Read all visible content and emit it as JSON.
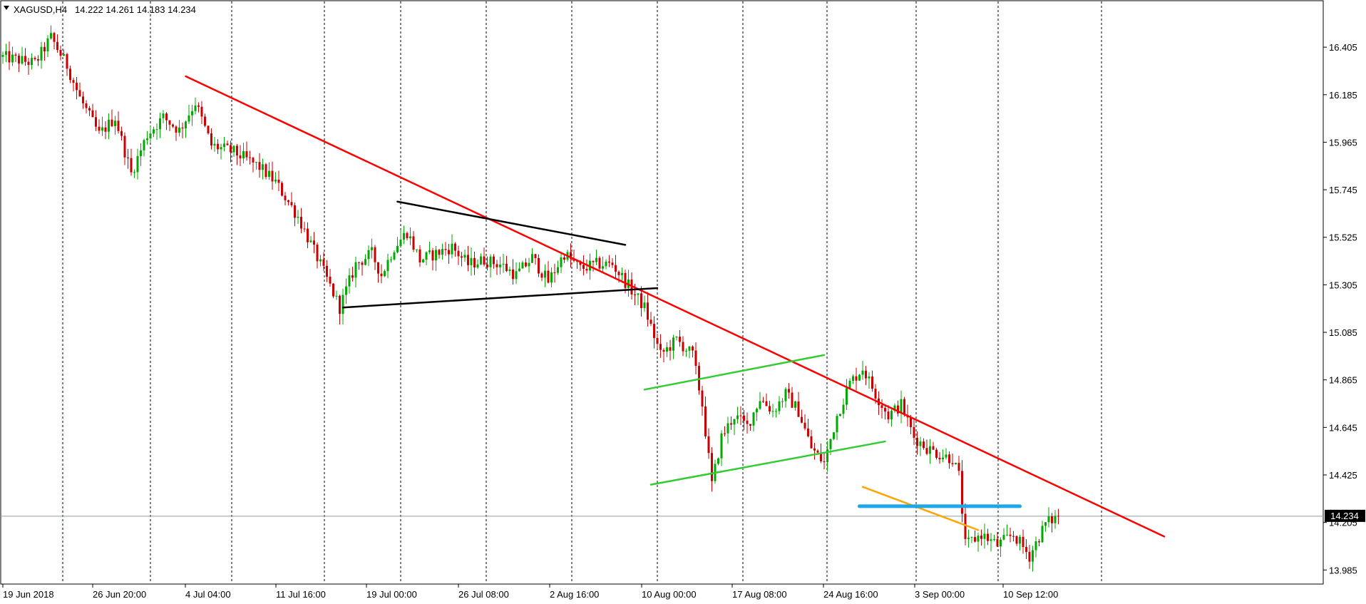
{
  "chart_data": {
    "type": "candlestick",
    "symbol_label": "XAGUSD,H4",
    "ohlc_label": "14.222 14.261 14.183 14.234",
    "last_price": "14.234",
    "y_ticks": [
      "16.405",
      "16.185",
      "15.965",
      "15.745",
      "15.525",
      "15.305",
      "15.085",
      "14.865",
      "14.645",
      "14.425",
      "14.205",
      "13.985"
    ],
    "ylim": [
      13.92,
      16.62
    ],
    "x_tick_labels": [
      "19 Jun 2018",
      "26 Jun 20:00",
      "4 Jul 04:00",
      "11 Jul 16:00",
      "19 Jul 00:00",
      "26 Jul 08:00",
      "2 Aug 16:00",
      "10 Aug 00:00",
      "17 Aug 08:00",
      "24 Aug 16:00",
      "3 Sep 00:00",
      "10 Sep 12:00"
    ],
    "bars_count": 330,
    "path_anchors": [
      [
        0,
        16.36
      ],
      [
        10,
        16.33
      ],
      [
        15,
        16.45
      ],
      [
        20,
        16.32
      ],
      [
        24,
        16.17
      ],
      [
        30,
        16.0
      ],
      [
        35,
        16.08
      ],
      [
        40,
        15.82
      ],
      [
        45,
        16.0
      ],
      [
        50,
        16.08
      ],
      [
        55,
        16.02
      ],
      [
        60,
        16.15
      ],
      [
        65,
        15.95
      ],
      [
        72,
        15.92
      ],
      [
        80,
        15.85
      ],
      [
        85,
        15.78
      ],
      [
        92,
        15.62
      ],
      [
        98,
        15.43
      ],
      [
        105,
        15.2
      ],
      [
        110,
        15.4
      ],
      [
        115,
        15.45
      ],
      [
        118,
        15.35
      ],
      [
        122,
        15.48
      ],
      [
        126,
        15.55
      ],
      [
        130,
        15.42
      ],
      [
        135,
        15.45
      ],
      [
        140,
        15.48
      ],
      [
        145,
        15.4
      ],
      [
        150,
        15.42
      ],
      [
        155,
        15.4
      ],
      [
        160,
        15.35
      ],
      [
        165,
        15.43
      ],
      [
        170,
        15.32
      ],
      [
        175,
        15.45
      ],
      [
        180,
        15.38
      ],
      [
        185,
        15.4
      ],
      [
        190,
        15.4
      ],
      [
        195,
        15.3
      ],
      [
        200,
        15.2
      ],
      [
        205,
        14.98
      ],
      [
        210,
        15.05
      ],
      [
        215,
        14.98
      ],
      [
        218,
        14.75
      ],
      [
        221,
        14.38
      ],
      [
        224,
        14.6
      ],
      [
        228,
        14.7
      ],
      [
        232,
        14.65
      ],
      [
        236,
        14.78
      ],
      [
        240,
        14.72
      ],
      [
        244,
        14.8
      ],
      [
        248,
        14.72
      ],
      [
        252,
        14.55
      ],
      [
        256,
        14.48
      ],
      [
        260,
        14.7
      ],
      [
        264,
        14.85
      ],
      [
        268,
        14.92
      ],
      [
        272,
        14.8
      ],
      [
        276,
        14.7
      ],
      [
        280,
        14.75
      ],
      [
        284,
        14.6
      ],
      [
        288,
        14.55
      ],
      [
        292,
        14.52
      ],
      [
        296,
        14.5
      ],
      [
        298,
        14.42
      ],
      [
        300,
        14.1
      ],
      [
        305,
        14.15
      ],
      [
        310,
        14.1
      ],
      [
        315,
        14.15
      ],
      [
        320,
        14.05
      ],
      [
        325,
        14.2
      ],
      [
        329,
        14.234
      ]
    ],
    "trendlines": [
      {
        "name": "red-trendline",
        "color": "#ff0000",
        "from": [
          57,
          16.27
        ],
        "to": [
          362,
          14.14
        ]
      },
      {
        "name": "black-upper-line",
        "color": "#000000",
        "from": [
          123,
          15.69
        ],
        "to": [
          194,
          15.49
        ]
      },
      {
        "name": "black-lower-line",
        "color": "#000000",
        "from": [
          106,
          15.2
        ],
        "to": [
          204,
          15.29
        ]
      },
      {
        "name": "green-upper-line",
        "color": "#33cc33",
        "from": [
          200,
          14.82
        ],
        "to": [
          256,
          14.98
        ]
      },
      {
        "name": "green-lower-line",
        "color": "#33cc33",
        "from": [
          202,
          14.38
        ],
        "to": [
          275,
          14.58
        ]
      },
      {
        "name": "orange-line",
        "color": "#ffa500",
        "from": [
          268,
          14.37
        ],
        "to": [
          304,
          14.17
        ]
      },
      {
        "name": "blue-resistance-line",
        "color": "#1ea7e8",
        "from": [
          267,
          14.28
        ],
        "to": [
          317,
          14.28
        ]
      }
    ],
    "colors": {
      "bull_candle": "#00aa00",
      "bear_candle": "#cc0000",
      "vgrid": "#000000",
      "price_line": "#8c9fa8",
      "price_box_bg": "#000000",
      "price_box_fg": "#ffffff"
    }
  }
}
